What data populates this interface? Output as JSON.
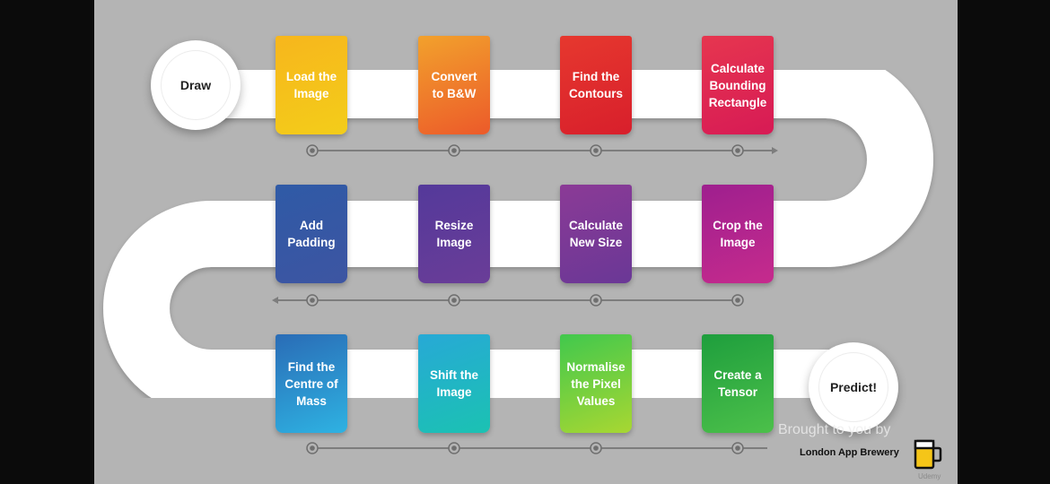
{
  "start_node": {
    "label": "Draw"
  },
  "end_node": {
    "label": "Predict!"
  },
  "steps": [
    {
      "label": "Load the\nImage",
      "color_top": "#f7b61c",
      "color_bottom": "#f3cd1a"
    },
    {
      "label": "Convert\nto B&W",
      "color_top": "#f2a12c",
      "color_bottom": "#ec5a2a"
    },
    {
      "label": "Find the\nContours",
      "color_top": "#e6382e",
      "color_bottom": "#d81f2c"
    },
    {
      "label": "Calculate\nBounding\nRectangle",
      "color_top": "#e6364f",
      "color_bottom": "#d71a55"
    },
    {
      "label": "Crop the\nImage",
      "color_top": "#9e1f8e",
      "color_bottom": "#c62b8d"
    },
    {
      "label": "Calculate\nNew Size",
      "color_top": "#8b3a96",
      "color_bottom": "#6a3896"
    },
    {
      "label": "Resize\nImage",
      "color_top": "#54399a",
      "color_bottom": "#6a3d98"
    },
    {
      "label": "Add\nPadding",
      "color_top": "#2f5aa6",
      "color_bottom": "#3d55a2"
    },
    {
      "label": "Find the\nCentre of\nMass",
      "color_top": "#2a6cb6",
      "color_bottom": "#2eb2e2"
    },
    {
      "label": "Shift the\nImage",
      "color_top": "#27a9d6",
      "color_bottom": "#1bc2b2"
    },
    {
      "label": "Normalise\nthe Pixel\nValues",
      "color_top": "#41c84d",
      "color_bottom": "#a8d732"
    },
    {
      "label": "Create a\nTensor",
      "color_top": "#1e9e3d",
      "color_bottom": "#4cc04a"
    }
  ],
  "footer": {
    "watermark": "Brought to you by",
    "brand": "London App Brewery",
    "platform": "Udemy"
  }
}
